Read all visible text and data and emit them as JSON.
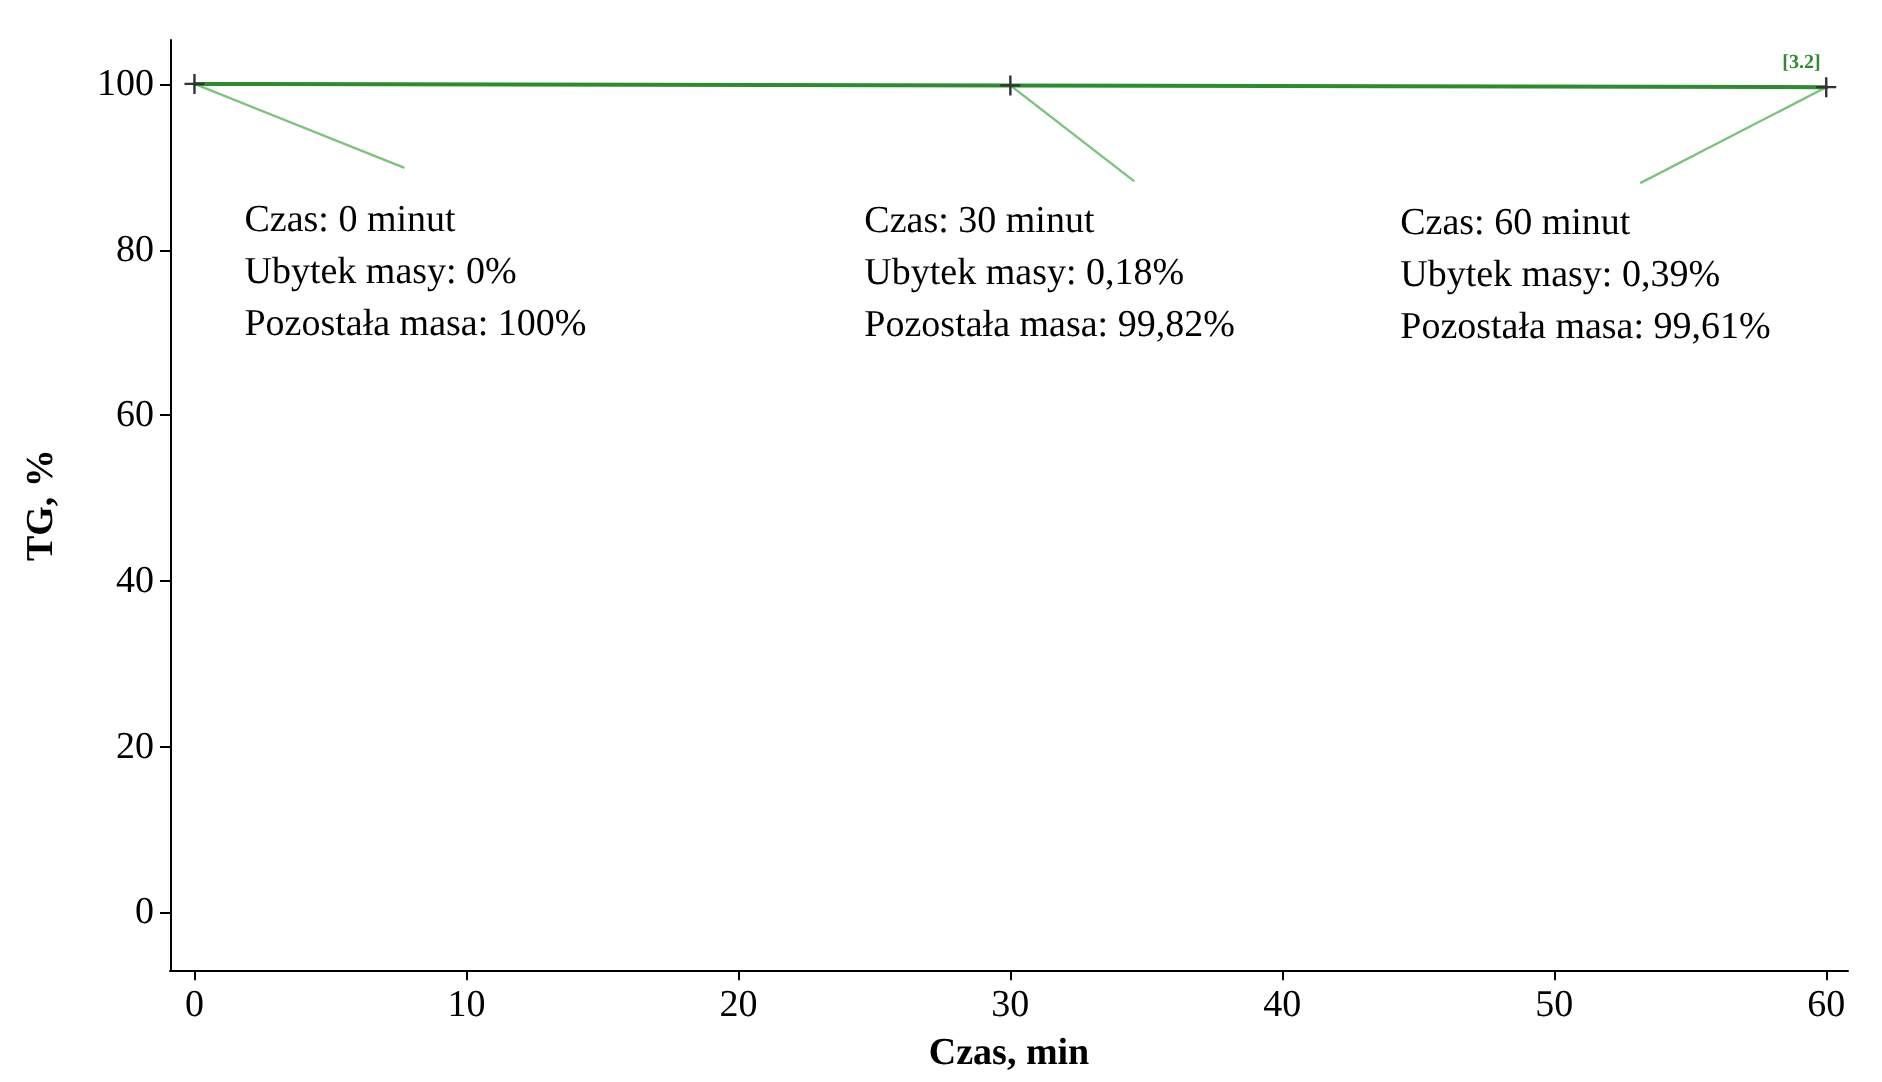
{
  "chart_data": {
    "type": "line",
    "xlabel": "Czas, min",
    "ylabel": "TG, %",
    "x": [
      0,
      30,
      60
    ],
    "series": [
      {
        "color": "#2e8b2e",
        "values": [
          100,
          99.82,
          99.61
        ]
      }
    ],
    "marker": "cross",
    "line_style": "solid",
    "grid": false,
    "xlim": [
      -0.9,
      60.8
    ],
    "xticks": [
      0,
      10,
      20,
      30,
      40,
      50,
      60
    ],
    "ylim": [
      -7,
      105.3
    ],
    "yticks": [
      0,
      20,
      40,
      60,
      80,
      100
    ],
    "annotations": [
      {
        "text": "Czas: 0 minut\nUbytek masy: 0%\nPozostała masa: 100%",
        "x": 0,
        "y": 100
      },
      {
        "text": "Czas: 30 minut\nUbytek masy: 0,18%\nPozostała masa: 99,82%",
        "x": 30,
        "y": 99.82
      },
      {
        "text": "Czas: 60 minut\nUbytek masy: 0,39%\nPozostała masa: 99,61%",
        "x": 60,
        "y": 99.61
      },
      {
        "text": "[3.2]",
        "x": 60,
        "y": 99.61
      }
    ]
  }
}
